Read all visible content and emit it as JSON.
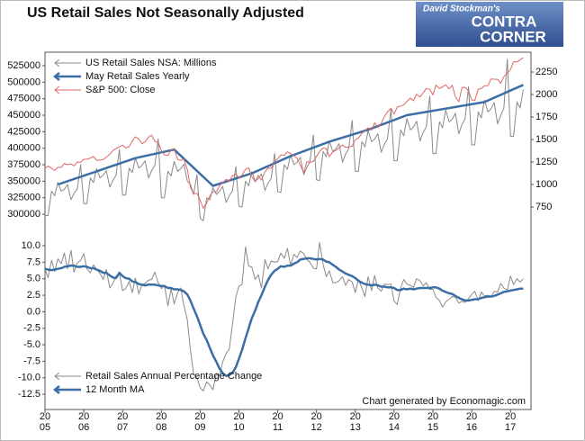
{
  "logo": {
    "line1": "David Stockman's",
    "line2": "CONTRA",
    "line3": "CORNER"
  },
  "chart_data": [
    {
      "type": "line",
      "title": "US Retail Sales Not Seasonally Adjusted",
      "xlim": [
        2005,
        2017.53
      ],
      "ylim": [
        286400,
        545500
      ],
      "y2lim": [
        570,
        2470
      ],
      "yticks": [
        300000,
        325000,
        350000,
        375000,
        400000,
        425000,
        450000,
        475000,
        500000,
        525000
      ],
      "y2ticks": [
        750,
        1000,
        1250,
        1500,
        1750,
        2000,
        2250
      ],
      "x": [
        2005.0,
        2005.08,
        2005.17,
        2005.25,
        2005.33,
        2005.42,
        2005.5,
        2005.58,
        2005.67,
        2005.75,
        2005.83,
        2005.92,
        2006.0,
        2006.08,
        2006.17,
        2006.25,
        2006.33,
        2006.42,
        2006.5,
        2006.58,
        2006.67,
        2006.75,
        2006.83,
        2006.92,
        2007.0,
        2007.08,
        2007.17,
        2007.25,
        2007.33,
        2007.42,
        2007.5,
        2007.58,
        2007.67,
        2007.75,
        2007.83,
        2007.92,
        2008.0,
        2008.08,
        2008.17,
        2008.25,
        2008.33,
        2008.42,
        2008.5,
        2008.58,
        2008.67,
        2008.75,
        2008.83,
        2008.92,
        2009.0,
        2009.08,
        2009.17,
        2009.25,
        2009.33,
        2009.42,
        2009.5,
        2009.58,
        2009.67,
        2009.75,
        2009.83,
        2009.92,
        2010.0,
        2010.08,
        2010.17,
        2010.25,
        2010.33,
        2010.42,
        2010.5,
        2010.58,
        2010.67,
        2010.75,
        2010.83,
        2010.92,
        2011.0,
        2011.08,
        2011.17,
        2011.25,
        2011.33,
        2011.42,
        2011.5,
        2011.58,
        2011.67,
        2011.75,
        2011.83,
        2011.92,
        2012.0,
        2012.08,
        2012.17,
        2012.25,
        2012.33,
        2012.42,
        2012.5,
        2012.58,
        2012.67,
        2012.75,
        2012.83,
        2012.92,
        2013.0,
        2013.08,
        2013.17,
        2013.25,
        2013.33,
        2013.42,
        2013.5,
        2013.58,
        2013.67,
        2013.75,
        2013.83,
        2013.92,
        2014.0,
        2014.08,
        2014.17,
        2014.25,
        2014.33,
        2014.42,
        2014.5,
        2014.58,
        2014.67,
        2014.75,
        2014.83,
        2014.92,
        2015.0,
        2015.08,
        2015.17,
        2015.25,
        2015.33,
        2015.42,
        2015.5,
        2015.58,
        2015.67,
        2015.75,
        2015.83,
        2015.92,
        2016.0,
        2016.08,
        2016.17,
        2016.25,
        2016.33,
        2016.42,
        2016.5,
        2016.58,
        2016.67,
        2016.75,
        2016.83,
        2016.92,
        2017.0,
        2017.08,
        2017.17,
        2017.25,
        2017.33
      ],
      "series": [
        {
          "name": "US Retail Sales NSA: Millions",
          "color": "#8a8a8a",
          "width": 1,
          "values": [
            298000,
            298000,
            335000,
            328000,
            348000,
            335000,
            338000,
            345000,
            322000,
            332000,
            338000,
            375000,
            316000,
            316000,
            355000,
            348000,
            369000,
            355000,
            359000,
            366000,
            341000,
            351000,
            359000,
            398000,
            329000,
            329000,
            370000,
            363000,
            385000,
            370000,
            374000,
            381000,
            355000,
            366000,
            374000,
            414000,
            325000,
            325000,
            365000,
            358000,
            380000,
            365000,
            369000,
            376000,
            350000,
            345000,
            330000,
            360000,
            294000,
            290000,
            325000,
            322000,
            340000,
            330000,
            335000,
            342000,
            318000,
            328000,
            335000,
            372000,
            312000,
            311000,
            350000,
            343000,
            364000,
            350000,
            354000,
            361000,
            336000,
            347000,
            354000,
            392000,
            334000,
            333000,
            375000,
            368000,
            390000,
            375000,
            379000,
            386000,
            360000,
            371000,
            379000,
            420000,
            352000,
            351000,
            395000,
            387000,
            411000,
            395000,
            399000,
            407000,
            379000,
            391000,
            399000,
            442000,
            365000,
            365000,
            410000,
            402000,
            426000,
            410000,
            414000,
            422000,
            394000,
            406000,
            414000,
            459000,
            381000,
            381000,
            428000,
            419000,
            445000,
            428000,
            432000,
            441000,
            411000,
            424000,
            432000,
            479000,
            392000,
            392000,
            440000,
            431000,
            458000,
            440000,
            444000,
            453000,
            422000,
            436000,
            444000,
            493000,
            405000,
            405000,
            455000,
            446000,
            473000,
            455000,
            460000,
            469000,
            437000,
            450000,
            460000,
            535000,
            418000,
            418000,
            470000,
            461000,
            489000
          ]
        },
        {
          "name": "May Retail Sales Yearly",
          "color": "#3a6ea5",
          "width": 2.5,
          "x": [
            2005.33,
            2006.33,
            2007.33,
            2008.33,
            2009.33,
            2010.33,
            2011.33,
            2012.33,
            2013.33,
            2014.33,
            2015.33,
            2016.33,
            2017.33
          ],
          "values": [
            345000,
            365000,
            385000,
            398000,
            343000,
            362000,
            388000,
            410000,
            428000,
            450000,
            460000,
            470000,
            496000
          ]
        },
        {
          "name": "S&P 500: Close",
          "color": "#e06666",
          "width": 1,
          "axis": "y2",
          "values": [
            1181,
            1204,
            1181,
            1156,
            1191,
            1191,
            1234,
            1220,
            1228,
            1207,
            1249,
            1248,
            1280,
            1280,
            1294,
            1310,
            1270,
            1270,
            1276,
            1303,
            1335,
            1377,
            1400,
            1418,
            1438,
            1406,
            1420,
            1482,
            1530,
            1503,
            1455,
            1473,
            1526,
            1549,
            1481,
            1468,
            1378,
            1330,
            1322,
            1385,
            1400,
            1280,
            1267,
            1282,
            1166,
            968,
            896,
            903,
            825,
            735,
            797,
            872,
            919,
            919,
            987,
            1020,
            1057,
            1036,
            1095,
            1115,
            1073,
            1104,
            1169,
            1186,
            1089,
            1030,
            1101,
            1049,
            1141,
            1183,
            1180,
            1257,
            1286,
            1327,
            1325,
            1363,
            1345,
            1320,
            1292,
            1218,
            1131,
            1253,
            1246,
            1257,
            1312,
            1365,
            1408,
            1397,
            1310,
            1362,
            1379,
            1406,
            1440,
            1412,
            1416,
            1426,
            1498,
            1514,
            1569,
            1597,
            1630,
            1606,
            1685,
            1632,
            1681,
            1756,
            1805,
            1848,
            1782,
            1859,
            1872,
            1883,
            1923,
            1960,
            1930,
            2003,
            1972,
            2018,
            2067,
            2058,
            1995,
            2104,
            2067,
            2085,
            2107,
            2063,
            2103,
            1972,
            1920,
            2079,
            2080,
            2043,
            1940,
            1932,
            2059,
            2065,
            2096,
            2098,
            2173,
            2170,
            2168,
            2126,
            2198,
            2238,
            2278,
            2363,
            2362,
            2384,
            2411
          ]
        }
      ]
    },
    {
      "type": "line",
      "note": "Chart generated by Economagic.com",
      "xlim": [
        2005,
        2017.53
      ],
      "ylim": [
        -14.8,
        12.05
      ],
      "xticks": [
        2005,
        2006,
        2007,
        2008,
        2009,
        2010,
        2011,
        2012,
        2013,
        2014,
        2015,
        2016,
        2017
      ],
      "yticks": [
        {
          "value": 10,
          "label": "10.0"
        },
        7.5,
        {
          "value": 5,
          "label": "5.0"
        },
        2.5,
        {
          "value": 0,
          "label": "0.0"
        },
        -2.5,
        {
          "value": -5,
          "label": "-5.0"
        },
        -7.5,
        {
          "value": -10,
          "label": "-10.0"
        },
        -12.5
      ],
      "x": [
        2005.0,
        2005.08,
        2005.17,
        2005.25,
        2005.33,
        2005.42,
        2005.5,
        2005.58,
        2005.67,
        2005.75,
        2005.83,
        2005.92,
        2006.0,
        2006.08,
        2006.17,
        2006.25,
        2006.33,
        2006.42,
        2006.5,
        2006.58,
        2006.67,
        2006.75,
        2006.83,
        2006.92,
        2007.0,
        2007.08,
        2007.17,
        2007.25,
        2007.33,
        2007.42,
        2007.5,
        2007.58,
        2007.67,
        2007.75,
        2007.83,
        2007.92,
        2008.0,
        2008.08,
        2008.17,
        2008.25,
        2008.33,
        2008.42,
        2008.5,
        2008.58,
        2008.67,
        2008.75,
        2008.83,
        2008.92,
        2009.0,
        2009.08,
        2009.17,
        2009.25,
        2009.33,
        2009.42,
        2009.5,
        2009.58,
        2009.67,
        2009.75,
        2009.83,
        2009.92,
        2010.0,
        2010.08,
        2010.17,
        2010.25,
        2010.33,
        2010.42,
        2010.5,
        2010.58,
        2010.67,
        2010.75,
        2010.83,
        2010.92,
        2011.0,
        2011.08,
        2011.17,
        2011.25,
        2011.33,
        2011.42,
        2011.5,
        2011.58,
        2011.67,
        2011.75,
        2011.83,
        2011.92,
        2012.0,
        2012.08,
        2012.17,
        2012.25,
        2012.33,
        2012.42,
        2012.5,
        2012.58,
        2012.67,
        2012.75,
        2012.83,
        2012.92,
        2013.0,
        2013.08,
        2013.17,
        2013.25,
        2013.33,
        2013.42,
        2013.5,
        2013.58,
        2013.67,
        2013.75,
        2013.83,
        2013.92,
        2014.0,
        2014.08,
        2014.17,
        2014.25,
        2014.33,
        2014.42,
        2014.5,
        2014.58,
        2014.67,
        2014.75,
        2014.83,
        2014.92,
        2015.0,
        2015.08,
        2015.17,
        2015.25,
        2015.33,
        2015.42,
        2015.5,
        2015.58,
        2015.67,
        2015.75,
        2015.83,
        2015.92,
        2016.0,
        2016.08,
        2016.17,
        2016.25,
        2016.33,
        2016.42,
        2016.5,
        2016.58,
        2016.67,
        2016.75,
        2016.83,
        2016.92,
        2017.0,
        2017.08,
        2017.17,
        2017.25,
        2017.33
      ],
      "series": [
        {
          "name": "Retail Sales Annual Percentage Change",
          "color": "#8a8a8a",
          "width": 1,
          "values": [
            6.4,
            5.2,
            7.8,
            6.1,
            8.0,
            7.3,
            8.9,
            6.5,
            9.3,
            6.0,
            7.4,
            7.8,
            8.8,
            6.5,
            5.9,
            7.1,
            6.4,
            5.8,
            4.9,
            6.4,
            3.6,
            4.3,
            5.4,
            5.8,
            3.2,
            3.5,
            4.6,
            2.9,
            5.1,
            2.7,
            4.1,
            4.3,
            4.8,
            4.9,
            6.0,
            4.4,
            3.5,
            4.0,
            0.9,
            3.5,
            1.2,
            2.9,
            3.6,
            1.0,
            -1.3,
            -5.8,
            -9.4,
            -10.0,
            -11.5,
            -12.0,
            -10.6,
            -11.1,
            -11.8,
            -9.3,
            -9.7,
            -7.6,
            -6.3,
            -5.7,
            -2.0,
            2.2,
            3.9,
            4.1,
            9.8,
            6.9,
            6.8,
            4.9,
            5.6,
            3.6,
            7.9,
            6.5,
            7.7,
            7.5,
            7.6,
            8.9,
            8.1,
            9.6,
            7.1,
            8.7,
            8.2,
            9.2,
            8.8,
            7.9,
            7.5,
            6.6,
            6.5,
            10.5,
            7.2,
            5.3,
            6.2,
            4.4,
            4.4,
            4.7,
            5.3,
            4.0,
            4.9,
            4.5,
            2.9,
            4.9,
            3.6,
            2.3,
            5.3,
            3.2,
            5.5,
            3.6,
            3.1,
            4.2,
            4.1,
            4.2,
            1.6,
            1.1,
            3.6,
            4.9,
            4.2,
            4.0,
            3.7,
            5.0,
            4.7,
            3.9,
            4.4,
            3.4,
            3.4,
            2.2,
            1.7,
            0.7,
            1.5,
            1.9,
            2.3,
            2.2,
            1.3,
            1.6,
            1.4,
            2.0,
            2.6,
            3.1,
            1.7,
            3.0,
            2.4,
            2.5,
            2.3,
            3.1,
            3.0,
            4.3,
            3.6,
            3.3,
            5.4,
            4.1,
            5.0,
            4.5,
            5.0
          ]
        },
        {
          "name": "12 Month MA",
          "color": "#3a6ea5",
          "width": 2.5,
          "values": [
            6.5,
            6.4,
            6.3,
            6.4,
            6.5,
            6.6,
            6.8,
            6.9,
            7.0,
            7.0,
            6.8,
            6.8,
            6.9,
            6.8,
            6.6,
            6.6,
            6.4,
            6.2,
            5.9,
            5.9,
            5.5,
            5.2,
            5.1,
            5.9,
            5.4,
            5.1,
            5.0,
            4.6,
            4.5,
            4.2,
            4.1,
            4.0,
            4.1,
            4.1,
            4.1,
            4.0,
            3.9,
            3.9,
            3.6,
            3.6,
            3.4,
            3.4,
            3.3,
            3.1,
            2.6,
            1.7,
            0.5,
            -0.7,
            -2.0,
            -3.3,
            -4.3,
            -5.5,
            -6.6,
            -7.6,
            -8.6,
            -9.3,
            -9.7,
            -9.6,
            -9.3,
            -8.4,
            -7.1,
            -5.8,
            -4.0,
            -2.5,
            -1.0,
            0.2,
            1.5,
            2.5,
            3.8,
            4.8,
            5.6,
            6.2,
            6.5,
            6.9,
            6.8,
            7.0,
            7.0,
            7.3,
            7.5,
            7.9,
            8.0,
            8.1,
            8.1,
            8.0,
            7.9,
            8.0,
            7.9,
            7.6,
            7.5,
            7.1,
            6.8,
            6.4,
            6.1,
            5.8,
            5.6,
            5.4,
            5.1,
            4.7,
            4.4,
            4.2,
            4.1,
            4.0,
            4.1,
            4.0,
            3.8,
            3.8,
            3.7,
            3.7,
            3.6,
            3.3,
            3.3,
            3.5,
            3.4,
            3.5,
            3.4,
            3.5,
            3.6,
            3.6,
            3.6,
            3.6,
            3.7,
            3.7,
            3.5,
            3.2,
            3.0,
            2.8,
            2.7,
            2.4,
            2.1,
            1.9,
            1.7,
            1.7,
            1.8,
            1.9,
            1.9,
            2.1,
            2.2,
            2.3,
            2.3,
            2.4,
            2.6,
            2.8,
            3.0,
            3.1,
            3.2,
            3.3,
            3.4,
            3.5,
            3.5
          ]
        }
      ]
    }
  ]
}
